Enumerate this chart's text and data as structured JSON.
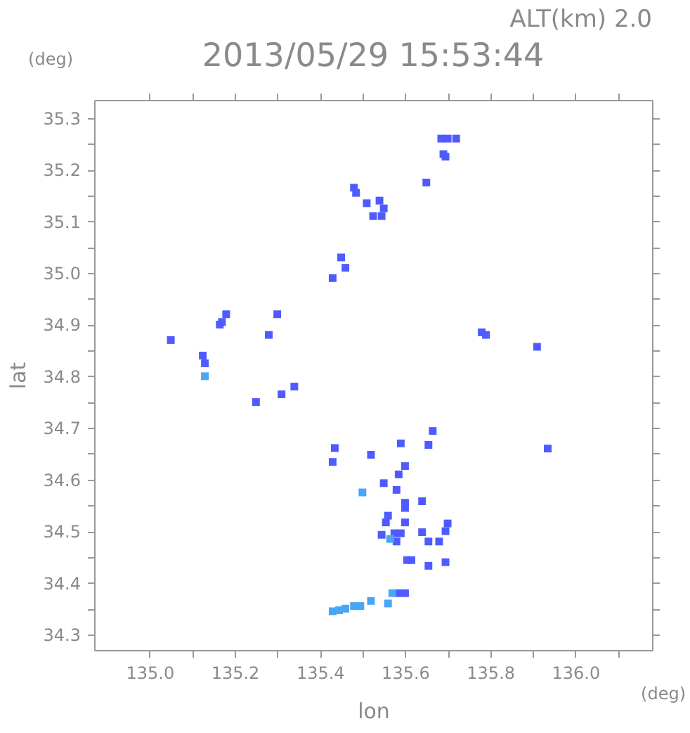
{
  "chart_data": {
    "type": "scatter",
    "title": "2013/05/29 15:53:44",
    "xlabel": "lon",
    "ylabel": "lat",
    "annotations": [
      "ALT(km) 2.0",
      "(deg)",
      "(deg)"
    ],
    "marker": "square",
    "xlim": [
      134.87,
      136.18
    ],
    "xticks": [
      {
        "value": 135,
        "label": "135.0"
      },
      {
        "value": 135.1,
        "label": null
      },
      135.2,
      {
        "value": 135.3,
        "label": null
      },
      135.4,
      {
        "value": 135.5,
        "label": null
      },
      135.6,
      {
        "value": 135.7,
        "label": null
      },
      135.8,
      {
        "value": 135.9,
        "label": null
      },
      {
        "value": 136,
        "label": "136.0"
      },
      {
        "value": 136.1,
        "label": null
      }
    ],
    "ylim": [
      34.27,
      35.335
    ],
    "yticks": [
      34.3,
      {
        "value": 34.35,
        "label": null
      },
      34.4,
      {
        "value": 34.45,
        "label": null
      },
      34.5,
      {
        "value": 34.55,
        "label": null
      },
      34.6,
      {
        "value": 34.65,
        "label": null
      },
      34.7,
      {
        "value": 34.75,
        "label": null
      },
      34.8,
      {
        "value": 34.85,
        "label": null
      },
      34.9,
      {
        "value": 34.95,
        "label": null
      },
      {
        "value": 35,
        "label": "35.0"
      },
      {
        "value": 35.05,
        "label": null
      },
      35.1,
      {
        "value": 35.15,
        "label": null
      },
      35.2,
      {
        "value": 35.25,
        "label": null
      },
      35.3
    ],
    "series": [
      {
        "color": "#4f5bff",
        "x": [
          135.05,
          135.125,
          135.13,
          135.17,
          135.165,
          135.18,
          135.3,
          135.28,
          135.34,
          135.31,
          135.25,
          135.48,
          135.485,
          135.51,
          135.54,
          135.55,
          135.545,
          135.525,
          135.45,
          135.46,
          135.43,
          135.65,
          135.685,
          135.7,
          135.72,
          135.69,
          135.695,
          135.78,
          135.79,
          135.91,
          135.935,
          135.665,
          135.435,
          135.43,
          135.52,
          135.655,
          135.59,
          135.6,
          135.585,
          135.55,
          135.58,
          135.6,
          135.6,
          135.64,
          135.56,
          135.555,
          135.6,
          135.545,
          135.575,
          135.58,
          135.59,
          135.655,
          135.695,
          135.7,
          135.68,
          135.64,
          135.605,
          135.615,
          135.655,
          135.695,
          135.585,
          135.6
        ],
        "values": [
          34.87,
          34.84,
          34.825,
          34.905,
          34.9,
          34.92,
          34.92,
          34.88,
          34.78,
          34.765,
          34.75,
          35.165,
          35.155,
          35.135,
          35.14,
          35.125,
          35.11,
          35.11,
          35.03,
          35.01,
          34.99,
          35.175,
          35.26,
          35.26,
          35.26,
          35.23,
          35.225,
          34.885,
          34.88,
          34.857,
          34.66,
          34.694,
          34.661,
          34.634,
          34.648,
          34.667,
          34.67,
          34.626,
          34.61,
          34.593,
          34.58,
          34.555,
          34.545,
          34.558,
          34.53,
          34.517,
          34.517,
          34.493,
          34.496,
          34.48,
          34.496,
          34.48,
          34.5,
          34.515,
          34.48,
          34.498,
          34.444,
          34.444,
          34.433,
          34.44,
          34.38,
          34.38
        ]
      },
      {
        "color": "#49a6f5",
        "x": [
          135.5,
          135.13,
          135.565,
          135.43,
          135.445,
          135.46,
          135.48,
          135.495,
          135.52,
          135.56,
          135.57
        ],
        "values": [
          34.575,
          34.8,
          34.485,
          34.345,
          34.347,
          34.35,
          34.355,
          34.355,
          34.365,
          34.36,
          34.38
        ]
      }
    ]
  }
}
